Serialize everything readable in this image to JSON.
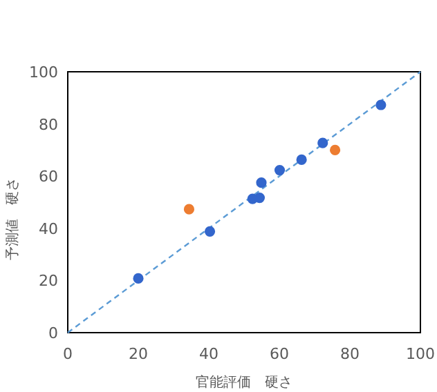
{
  "chart_data": {
    "type": "scatter",
    "xlabel": "官能評価　硬さ",
    "ylabel": "予測値　硬さ",
    "marker": "circle",
    "xlim": [
      0,
      100
    ],
    "ylim": [
      0,
      100
    ],
    "xticks": [
      0,
      20,
      40,
      60,
      80,
      100
    ],
    "yticks": [
      0,
      20,
      40,
      60,
      80,
      100
    ],
    "series": [
      {
        "type": "line",
        "color": "#5b9bd5",
        "line_style": "dashed",
        "marker": "none",
        "x": [
          0,
          100
        ],
        "values": [
          0,
          100
        ]
      },
      {
        "color": "#3366cc",
        "x": [
          20,
          40.3,
          52.4,
          54.4,
          54.9,
          60.1,
          66.3,
          72.3,
          88.8
        ],
        "values": [
          20.8,
          38.8,
          51.3,
          51.7,
          57.5,
          62.3,
          66.3,
          72.7,
          87.3
        ]
      },
      {
        "color": "#ed7d31",
        "x": [
          34.4,
          75.8
        ],
        "values": [
          47.3,
          70.0
        ]
      }
    ]
  }
}
